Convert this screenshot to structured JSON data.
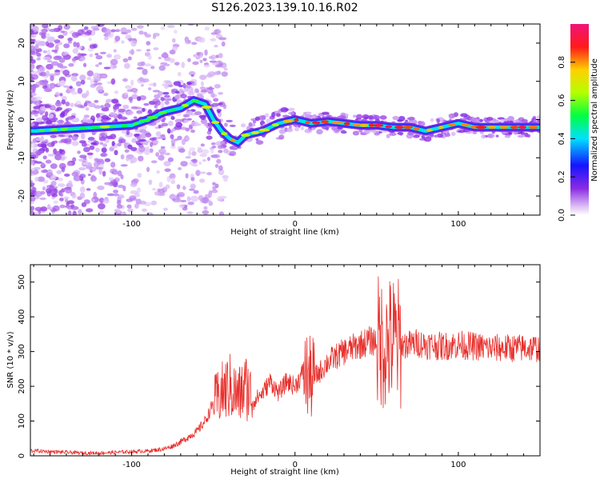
{
  "title": "S126.2023.139.10.16.R02",
  "colors": {
    "snr_line": "#e8302c",
    "frame": "#000000",
    "background": "#ffffff"
  },
  "chart_data": [
    {
      "type": "heatmap",
      "xlabel": "Height of straight line (km)",
      "ylabel": "Frequency (Hz)",
      "xlim": [
        -162,
        150
      ],
      "ylim": [
        -25,
        25
      ],
      "xticks": [
        -100,
        0,
        100
      ],
      "xtick_labels": [
        "-100",
        "0",
        "100"
      ],
      "yticks": [
        -20,
        -10,
        0,
        10,
        20
      ],
      "ytick_labels": [
        "-20",
        "-10",
        "0",
        "10",
        "20"
      ],
      "colorbar": {
        "label": "Normalized spectral amplitude",
        "range": [
          0,
          1
        ],
        "ticks": [
          0.0,
          0.2,
          0.4,
          0.6,
          0.8
        ],
        "tick_labels": [
          "0.0",
          "0.2",
          "0.4",
          "0.6",
          "0.8"
        ],
        "colormap": "rainbow (white-violet-blue-cyan-green-yellow-red-magenta)"
      },
      "ridge": {
        "description": "dominant Doppler frequency versus height",
        "x": [
          -160,
          -140,
          -120,
          -100,
          -90,
          -80,
          -70,
          -62,
          -55,
          -50,
          -45,
          -40,
          -35,
          -30,
          -20,
          -10,
          0,
          10,
          20,
          30,
          40,
          50,
          60,
          70,
          80,
          90,
          100,
          110,
          120,
          130,
          140,
          148
        ],
        "y": [
          -3,
          -2.5,
          -2,
          -1.5,
          0,
          2,
          3,
          5,
          4,
          0,
          -3,
          -5,
          -6,
          -4,
          -3,
          -1,
          0,
          -1,
          -0.5,
          -1,
          -1.5,
          -1.5,
          -2,
          -2,
          -3,
          -2,
          -1,
          -2,
          -2,
          -2,
          -2,
          -2
        ]
      }
    },
    {
      "type": "line",
      "xlabel": "Height of straight line (km)",
      "ylabel": "SNR (10 * v/v)",
      "xlim": [
        -162,
        150
      ],
      "ylim": [
        0,
        550
      ],
      "xticks": [
        -100,
        0,
        100
      ],
      "xtick_labels": [
        "-100",
        "0",
        "100"
      ],
      "yticks": [
        0,
        100,
        200,
        300,
        400,
        500
      ],
      "ytick_labels": [
        "0",
        "100",
        "200",
        "300",
        "400",
        "500"
      ],
      "series": [
        {
          "x": [
            -162,
            -150,
            -140,
            -130,
            -120,
            -110,
            -100,
            -90,
            -80,
            -75,
            -70,
            -65,
            -60,
            -55,
            -50,
            -45,
            -40,
            -35,
            -30,
            -25,
            -20,
            -15,
            -10,
            -5,
            0,
            5,
            10,
            15,
            20,
            25,
            30,
            35,
            40,
            45,
            50,
            55,
            60,
            65,
            70,
            75,
            80,
            90,
            100,
            110,
            120,
            130,
            140,
            150
          ],
          "values": [
            15,
            12,
            10,
            8,
            8,
            10,
            12,
            14,
            20,
            28,
            40,
            55,
            70,
            100,
            150,
            180,
            200,
            170,
            200,
            160,
            180,
            215,
            180,
            215,
            200,
            240,
            220,
            240,
            270,
            285,
            300,
            310,
            320,
            330,
            330,
            320,
            330,
            320,
            320,
            325,
            320,
            315,
            320,
            315,
            310,
            310,
            310,
            310
          ]
        }
      ]
    }
  ]
}
